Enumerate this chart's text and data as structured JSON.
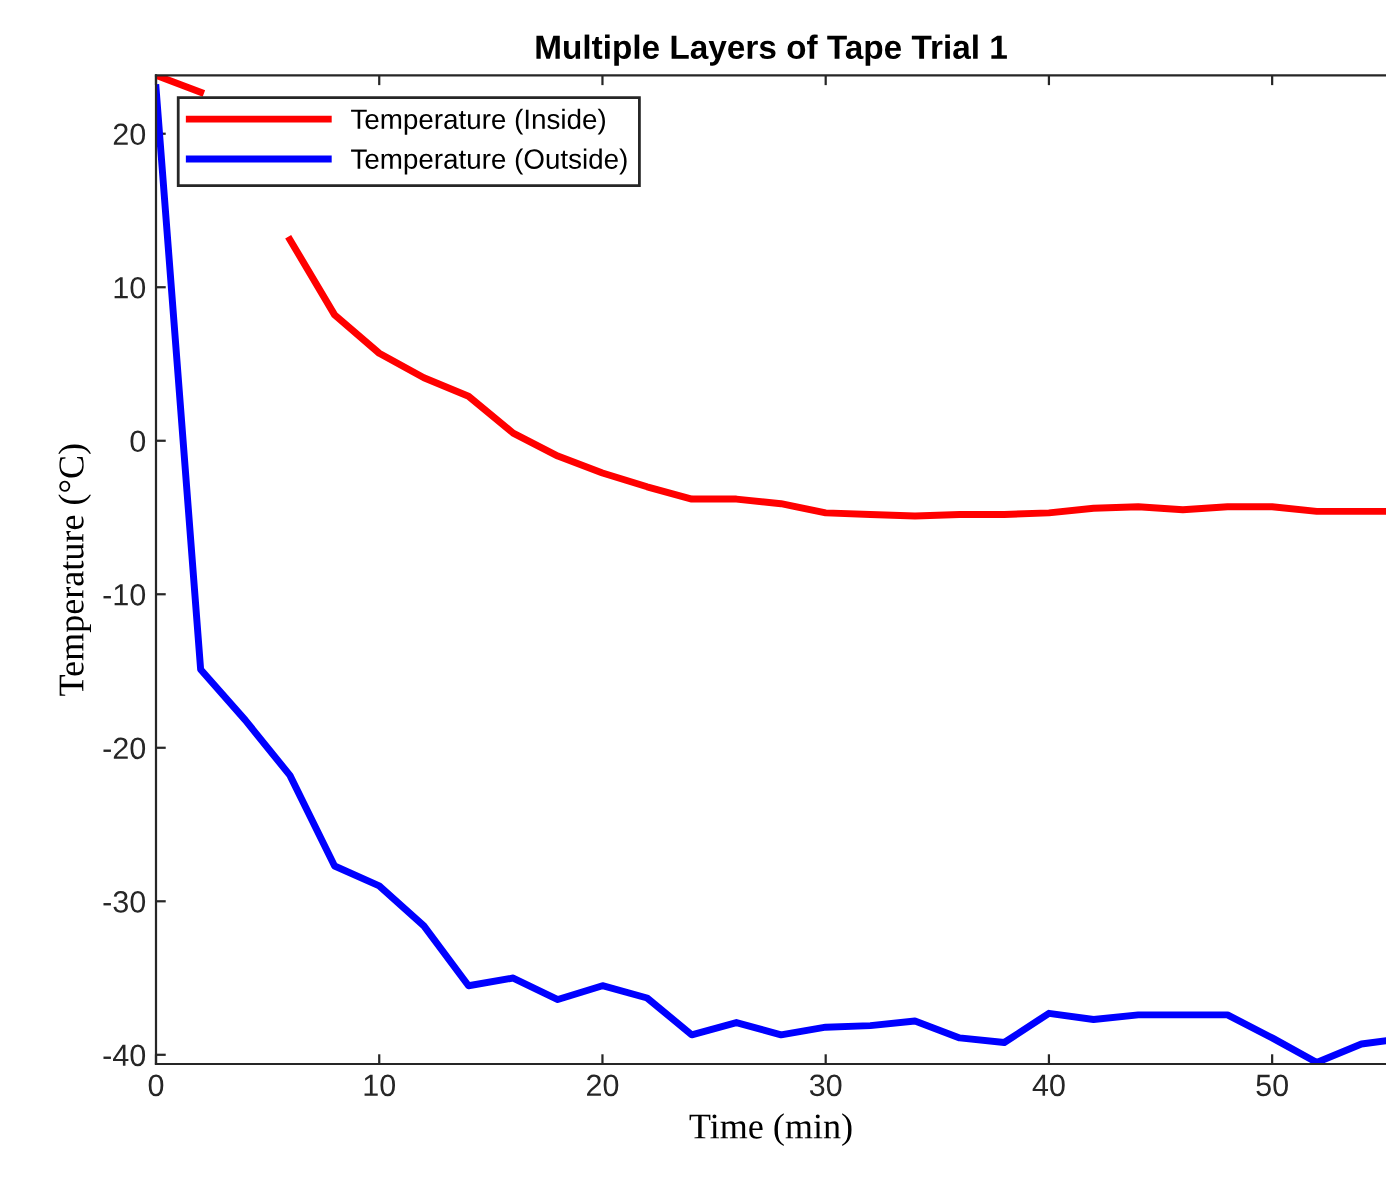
{
  "chart_data": {
    "type": "line",
    "title": "Multiple Layers of Tape Trial 1",
    "xlabel": "Time (min)",
    "ylabel": "Temperature (°C)",
    "x": [
      0,
      2,
      4,
      6,
      8,
      10,
      12,
      14,
      16,
      18,
      20,
      22,
      24,
      26,
      28,
      30,
      32,
      34,
      36,
      38,
      40,
      42,
      44,
      46,
      48,
      50,
      52,
      54,
      55
    ],
    "series": [
      {
        "name": "Temperature (Inside)",
        "color": "#ff0000",
        "values": [
          23.8,
          22.7,
          null,
          13.1,
          8.2,
          5.7,
          4.1,
          2.9,
          0.5,
          -1.0,
          -2.1,
          -3.0,
          -3.8,
          -3.8,
          -4.1,
          -4.7,
          -4.8,
          -4.9,
          -4.8,
          -4.8,
          -4.7,
          -4.4,
          -4.3,
          -4.5,
          -4.3,
          -4.3,
          -4.6,
          -4.6,
          -4.6
        ]
      },
      {
        "name": "Temperature (Outside)",
        "color": "#0000ff",
        "values": [
          23,
          -14.9,
          -18.2,
          -21.8,
          -27.7,
          -29,
          -31.6,
          -35.5,
          -35,
          -36.4,
          -35.5,
          -36.3,
          -38.7,
          -37.9,
          -38.7,
          -38.2,
          -38.1,
          -37.8,
          -38.9,
          -39.2,
          -37.3,
          -37.7,
          -37.4,
          -37.4,
          -37.4,
          -38.9,
          -40.5,
          -39.3,
          -39.1
        ]
      }
    ],
    "xlim": [
      0,
      55.1
    ],
    "ylim": [
      -40.6,
      23.8
    ],
    "xticks": [
      0,
      10,
      20,
      30,
      40,
      50
    ],
    "yticks": [
      -40,
      -30,
      -20,
      -10,
      0,
      10,
      20
    ],
    "legend": "top left",
    "grid": false,
    "marker": "none",
    "line_style": "solid"
  }
}
